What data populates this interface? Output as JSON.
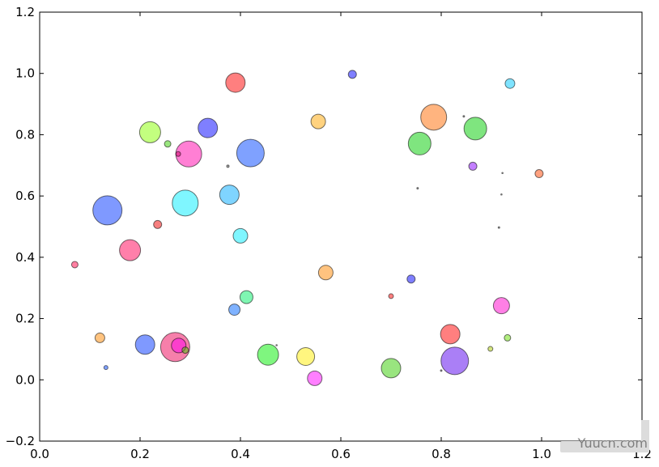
{
  "chart_data": {
    "type": "scatter",
    "title": "",
    "xlabel": "",
    "ylabel": "",
    "xlim": [
      0.0,
      1.2
    ],
    "ylim": [
      -0.2,
      1.2
    ],
    "x_ticks": [
      "0.0",
      "0.2",
      "0.4",
      "0.6",
      "0.8",
      "1.0",
      "1.2"
    ],
    "y_ticks": [
      "−0.2",
      "0.0",
      "0.2",
      "0.4",
      "0.6",
      "0.8",
      "1.0",
      "1.2"
    ],
    "x_tick_values": [
      0.0,
      0.2,
      0.4,
      0.6,
      0.8,
      1.0,
      1.2
    ],
    "y_tick_values": [
      -0.2,
      0.0,
      0.2,
      0.4,
      0.6,
      0.8,
      1.0,
      1.2
    ],
    "grid": false,
    "legend": "none",
    "alpha": 0.5,
    "points": [
      {
        "x": 0.623,
        "y": 0.997,
        "size": 5,
        "color": "#0000ff"
      },
      {
        "x": 0.39,
        "y": 0.97,
        "size": 12,
        "color": "#ff0000"
      },
      {
        "x": 0.937,
        "y": 0.967,
        "size": 6,
        "color": "#00c8ff"
      },
      {
        "x": 0.785,
        "y": 0.857,
        "size": 16,
        "color": "#ff6a00"
      },
      {
        "x": 0.845,
        "y": 0.86,
        "size": 1,
        "color": "#5a5a5a"
      },
      {
        "x": 0.555,
        "y": 0.843,
        "size": 9,
        "color": "#ffa500"
      },
      {
        "x": 0.335,
        "y": 0.822,
        "size": 12,
        "color": "#0000ff"
      },
      {
        "x": 0.868,
        "y": 0.82,
        "size": 14,
        "color": "#00cc00"
      },
      {
        "x": 0.22,
        "y": 0.808,
        "size": 13,
        "color": "#88ff00"
      },
      {
        "x": 0.757,
        "y": 0.771,
        "size": 14,
        "color": "#00cc00"
      },
      {
        "x": 0.255,
        "y": 0.77,
        "size": 4,
        "color": "#33cc00"
      },
      {
        "x": 0.42,
        "y": 0.74,
        "size": 17,
        "color": "#0044ff"
      },
      {
        "x": 0.297,
        "y": 0.737,
        "size": 16,
        "color": "#ff00aa"
      },
      {
        "x": 0.276,
        "y": 0.737,
        "size": 3,
        "color": "#cc0066"
      },
      {
        "x": 0.375,
        "y": 0.697,
        "size": 1.5,
        "color": "#5a5a5a"
      },
      {
        "x": 0.863,
        "y": 0.697,
        "size": 5,
        "color": "#8800ff"
      },
      {
        "x": 0.995,
        "y": 0.673,
        "size": 5,
        "color": "#ff4400"
      },
      {
        "x": 0.922,
        "y": 0.675,
        "size": 0.8,
        "color": "#999999"
      },
      {
        "x": 0.753,
        "y": 0.625,
        "size": 1,
        "color": "#5a5a5a"
      },
      {
        "x": 0.92,
        "y": 0.605,
        "size": 0.8,
        "color": "#999999"
      },
      {
        "x": 0.29,
        "y": 0.577,
        "size": 16,
        "color": "#00eeff"
      },
      {
        "x": 0.378,
        "y": 0.604,
        "size": 12,
        "color": "#00aaff"
      },
      {
        "x": 0.135,
        "y": 0.553,
        "size": 18,
        "color": "#0033ff"
      },
      {
        "x": 0.235,
        "y": 0.507,
        "size": 5,
        "color": "#ee0000"
      },
      {
        "x": 0.915,
        "y": 0.497,
        "size": 1,
        "color": "#5a5a5a"
      },
      {
        "x": 0.4,
        "y": 0.47,
        "size": 9,
        "color": "#00eeff"
      },
      {
        "x": 0.18,
        "y": 0.423,
        "size": 13,
        "color": "#ff0055"
      },
      {
        "x": 0.07,
        "y": 0.376,
        "size": 4,
        "color": "#ff0044"
      },
      {
        "x": 0.57,
        "y": 0.35,
        "size": 9,
        "color": "#ff8800"
      },
      {
        "x": 0.74,
        "y": 0.329,
        "size": 5,
        "color": "#0000ff"
      },
      {
        "x": 0.7,
        "y": 0.273,
        "size": 3,
        "color": "#ff0000"
      },
      {
        "x": 0.412,
        "y": 0.27,
        "size": 8,
        "color": "#00ee66"
      },
      {
        "x": 0.92,
        "y": 0.242,
        "size": 10,
        "color": "#ff00cc"
      },
      {
        "x": 0.388,
        "y": 0.229,
        "size": 7,
        "color": "#0066ff"
      },
      {
        "x": 0.818,
        "y": 0.149,
        "size": 12,
        "color": "#ff0000"
      },
      {
        "x": 0.12,
        "y": 0.137,
        "size": 6,
        "color": "#ff8800"
      },
      {
        "x": 0.932,
        "y": 0.137,
        "size": 4,
        "color": "#66dd00"
      },
      {
        "x": 0.21,
        "y": 0.115,
        "size": 12,
        "color": "#0033ff"
      },
      {
        "x": 0.27,
        "y": 0.107,
        "size": 18,
        "color": "#ee0055"
      },
      {
        "x": 0.277,
        "y": 0.112,
        "size": 9,
        "color": "#ff00ee"
      },
      {
        "x": 0.29,
        "y": 0.097,
        "size": 4,
        "color": "#44cc00"
      },
      {
        "x": 0.472,
        "y": 0.113,
        "size": 0.8,
        "color": "#999999"
      },
      {
        "x": 0.898,
        "y": 0.101,
        "size": 3,
        "color": "#aacc00"
      },
      {
        "x": 0.455,
        "y": 0.082,
        "size": 13,
        "color": "#00ee00"
      },
      {
        "x": 0.53,
        "y": 0.076,
        "size": 11,
        "color": "#ffee00"
      },
      {
        "x": 0.827,
        "y": 0.062,
        "size": 17,
        "color": "#5500ee"
      },
      {
        "x": 0.132,
        "y": 0.04,
        "size": 2.5,
        "color": "#0044ff"
      },
      {
        "x": 0.7,
        "y": 0.038,
        "size": 12,
        "color": "#33cc00"
      },
      {
        "x": 0.8,
        "y": 0.03,
        "size": 1,
        "color": "#5a5a5a"
      },
      {
        "x": 0.548,
        "y": 0.005,
        "size": 9,
        "color": "#ff00ff"
      }
    ]
  },
  "watermark": {
    "text": "Yuucn.com"
  }
}
